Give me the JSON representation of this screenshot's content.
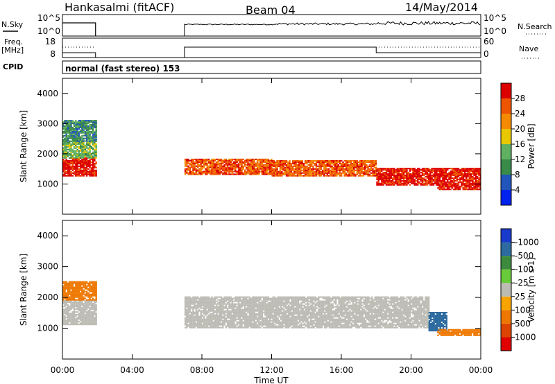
{
  "header": {
    "station": "Hankasalmi (fitACF)",
    "beam": "Beam 04",
    "date": "14/May/2014"
  },
  "sky_panel": {
    "left_label": "N.Sky",
    "right_label": "N.Search",
    "left_ticks": [
      "10^5",
      "10^0"
    ],
    "right_ticks": [
      "10^5",
      "10^0"
    ]
  },
  "freq_panel": {
    "left_label_line1": "Freq.",
    "left_label_line2": "[MHz]",
    "right_label": "Nave",
    "left_ticks": [
      "18",
      "8"
    ],
    "right_ticks": [
      "60",
      "0"
    ]
  },
  "cpid": {
    "label": "CPID",
    "text": "normal (fast stereo) 153"
  },
  "x_axis": {
    "ticks": [
      "00:00",
      "04:00",
      "08:00",
      "12:00",
      "16:00",
      "20:00",
      "00:00"
    ],
    "label": "Time UT"
  },
  "y_axis": {
    "label": "Slant Range [km]",
    "ticks": [
      "1000",
      "2000",
      "3000",
      "4000"
    ]
  },
  "colors": {
    "power": [
      "#0022ee",
      "#2255bb",
      "#3a8a4a",
      "#5fb060",
      "#e8c800",
      "#f58a00",
      "#ee5500",
      "#dd0000"
    ],
    "velocity": [
      "#1a3acc",
      "#2c6aa0",
      "#3d8a3f",
      "#6acb3a",
      "#bcbcb4",
      "#bcbcb4",
      "#f7a400",
      "#ee7700",
      "#dd4400",
      "#e00000"
    ]
  },
  "chart_data": [
    {
      "type": "heatmap",
      "name": "Power",
      "colorbar_label": "Power [dB]",
      "colorbar_ticks": [
        "4",
        "8",
        "12",
        "16",
        "20",
        "24",
        "28"
      ],
      "x_range_hours": [
        0,
        24
      ],
      "ylim": [
        0,
        4500
      ],
      "regions": [
        {
          "t": [
            0.0,
            1.9
          ],
          "r": [
            1250,
            1850
          ],
          "level": 7
        },
        {
          "t": [
            0.0,
            1.9
          ],
          "r": [
            1850,
            2400
          ],
          "level": 3
        },
        {
          "t": [
            0.0,
            1.9
          ],
          "r": [
            2400,
            3100
          ],
          "level": 2
        },
        {
          "t": [
            7.0,
            12.0
          ],
          "r": [
            1300,
            1800
          ],
          "level": 6
        },
        {
          "t": [
            12.0,
            18.0
          ],
          "r": [
            1250,
            1750
          ],
          "level": 6
        },
        {
          "t": [
            18.0,
            24.0
          ],
          "r": [
            950,
            1500
          ],
          "level": 7
        },
        {
          "t": [
            21.5,
            24.0
          ],
          "r": [
            800,
            1000
          ],
          "level": 7
        }
      ]
    },
    {
      "type": "heatmap",
      "name": "Velocity",
      "colorbar_label": "Velocity [m s-1]",
      "colorbar_ticks": [
        "1000",
        "500",
        "100",
        "25",
        "-25",
        "-100",
        "-500",
        "-1000"
      ],
      "x_range_hours": [
        0,
        24
      ],
      "ylim": [
        0,
        4500
      ],
      "regions": [
        {
          "t": [
            0.0,
            1.9
          ],
          "r": [
            1100,
            1900
          ],
          "velocity": 0
        },
        {
          "t": [
            0.0,
            1.9
          ],
          "r": [
            1900,
            2500
          ],
          "velocity": -150
        },
        {
          "t": [
            7.0,
            18.0
          ],
          "r": [
            1000,
            2000
          ],
          "velocity": 0
        },
        {
          "t": [
            18.0,
            21.0
          ],
          "r": [
            1000,
            2000
          ],
          "velocity": 0
        },
        {
          "t": [
            21.0,
            22.0
          ],
          "r": [
            900,
            1500
          ],
          "velocity": 150
        },
        {
          "t": [
            21.5,
            24.0
          ],
          "r": [
            750,
            950
          ],
          "velocity": -150
        }
      ]
    }
  ]
}
